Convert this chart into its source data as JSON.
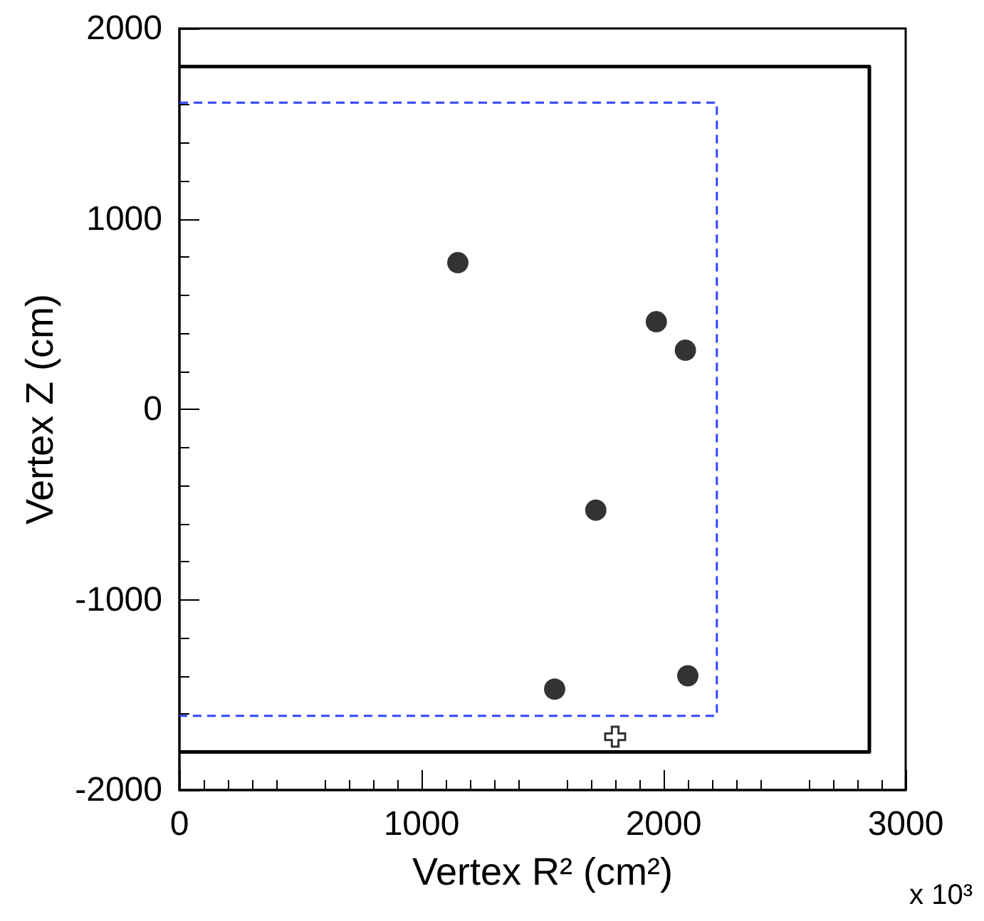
{
  "chart_data": {
    "type": "scatter",
    "xlabel": "Vertex R² (cm²)",
    "ylabel": "Vertex Z (cm)",
    "annotations": [
      "x 10³"
    ],
    "xlim": [
      0,
      3000
    ],
    "xticks": [
      0,
      1000,
      2000,
      3000
    ],
    "ylim": [
      -2000,
      2000
    ],
    "yticks": [
      -2000,
      -1000,
      0,
      1000,
      2000
    ],
    "series": [
      {
        "marker": "circle",
        "color": "#000000",
        "x": [
          1150,
          1970,
          2090,
          1720,
          1550,
          2100
        ],
        "values": [
          770,
          460,
          310,
          -530,
          -1470,
          -1400
        ]
      },
      {
        "marker": "cross",
        "color": "#000000",
        "x": [
          1800
        ],
        "values": [
          -1720
        ]
      },
      {
        "type": "line",
        "marker": "none",
        "line_style": "solid",
        "color": "#000000",
        "x": [
          0,
          2850,
          2850,
          0
        ],
        "values": [
          1800,
          1800,
          -1800,
          -1800
        ]
      },
      {
        "type": "line",
        "marker": "none",
        "line_style": "dashed",
        "color": "#3344ff",
        "x": [
          0,
          2220,
          2220,
          0
        ],
        "values": [
          1610,
          1610,
          -1610,
          -1610
        ]
      }
    ]
  }
}
